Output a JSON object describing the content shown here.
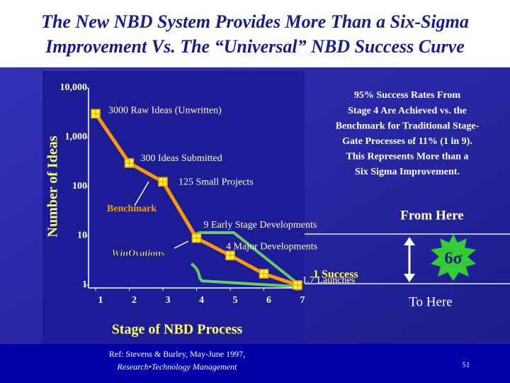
{
  "slide": {
    "title_lines": [
      "The New NBD System Provides More Than a Six-Sigma",
      "Improvement Vs. The “Universal” NBD Success Curve"
    ],
    "note_lines": [
      "95% Success Rates From",
      "Stage 4 Are Achieved vs. the",
      "Benchmark for Traditional Stage-",
      "Gate Processes of 11% (1 in 9).",
      "This Represents More than a",
      "Six Sigma Improvement."
    ],
    "from_label": "From Here",
    "to_label": "To Here",
    "sigma_label": "6σ",
    "ref_line": "Ref:  Stevens & Burley, May-June 1997,",
    "ref_journal": "Research•Technology Management",
    "page_number": "51"
  },
  "chart_data": {
    "type": "line",
    "x_label": "Stage of NBD Process",
    "y_label": "Number of Ideas",
    "log_y": true,
    "xlim": [
      1,
      7
    ],
    "xticks": [
      1,
      2,
      3,
      4,
      5,
      6,
      7
    ],
    "ylim": [
      1,
      10000
    ],
    "yticks": [
      1,
      10,
      100,
      {
        "value": 1000,
        "label": "1,000"
      },
      {
        "value": 10000,
        "label": "10,000"
      }
    ],
    "series": [
      {
        "name": "Benchmark",
        "color": "#ff9900",
        "x": [
          1,
          2,
          3,
          4,
          5,
          6,
          7
        ],
        "values": [
          3000,
          300,
          125,
          9,
          4,
          1.7,
          1
        ],
        "value_labels": [
          "3000 Raw Ideas (Unwritten)",
          "300 Ideas Submitted",
          "125 Small Projects",
          "9 Early Stage Developments",
          "4 Major Developments",
          "1.7 Launches",
          "1 Success"
        ]
      }
    ],
    "annotation": "WinOvations"
  }
}
